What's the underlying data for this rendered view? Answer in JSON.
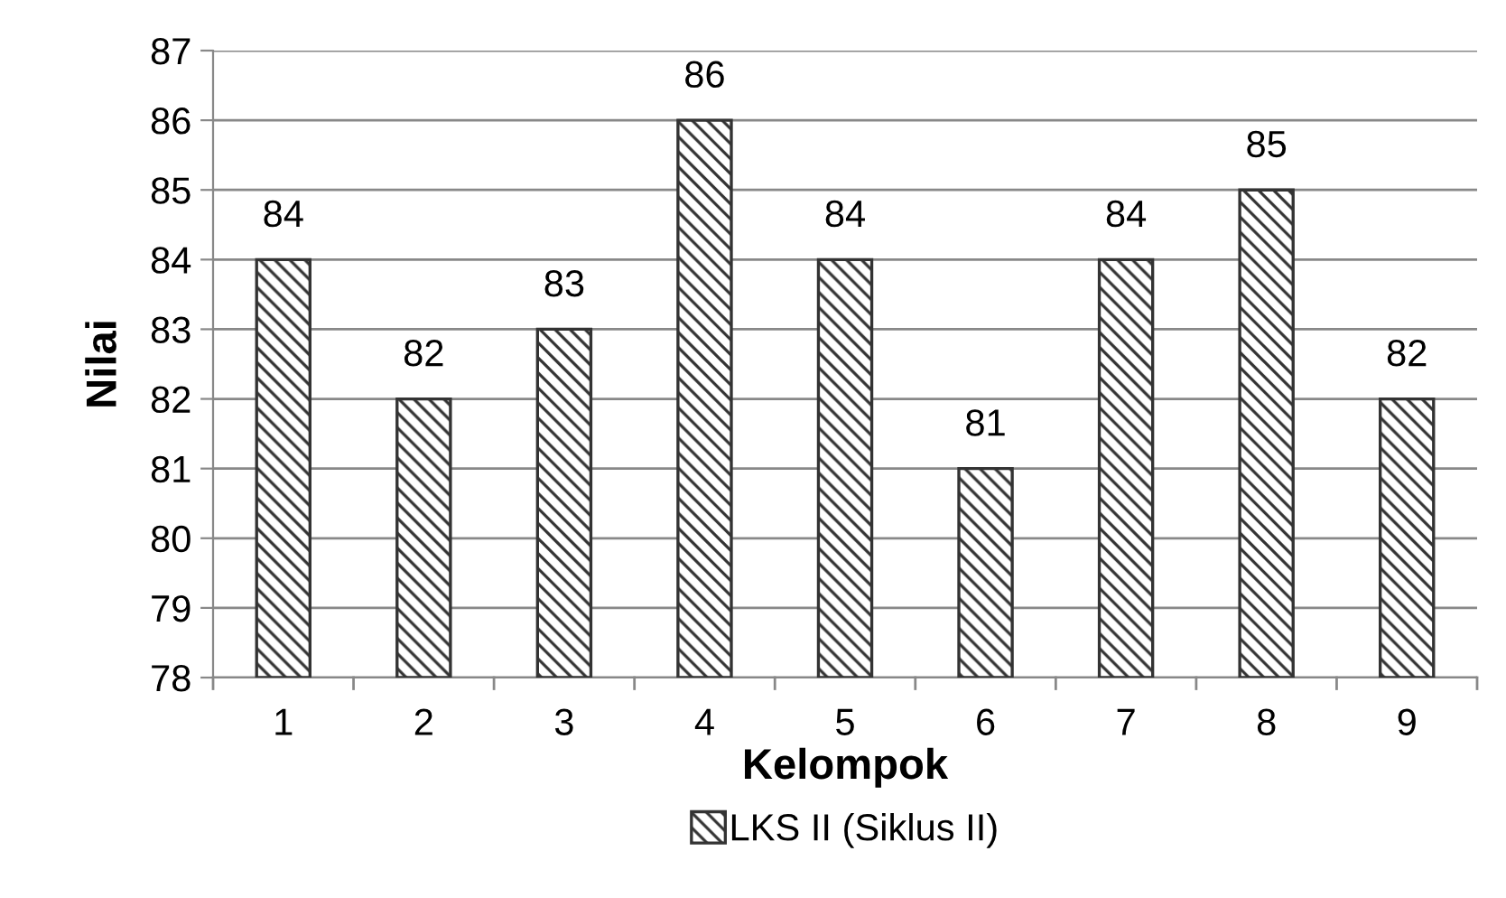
{
  "chart_data": {
    "type": "bar",
    "xlabel": "Kelompok",
    "ylabel": "Nilai",
    "categories": [
      "1",
      "2",
      "3",
      "4",
      "5",
      "6",
      "7",
      "8",
      "9"
    ],
    "series": [
      {
        "name": "LKS II (Siklus II)",
        "color": "#333333",
        "values": [
          84,
          82,
          83,
          86,
          84,
          81,
          84,
          85,
          82
        ]
      }
    ],
    "ylim": [
      78,
      87
    ],
    "yticks": [
      78,
      79,
      80,
      81,
      82,
      83,
      84,
      85,
      86,
      87
    ],
    "grid": "y",
    "legend": "bottom",
    "data_labels": true
  }
}
